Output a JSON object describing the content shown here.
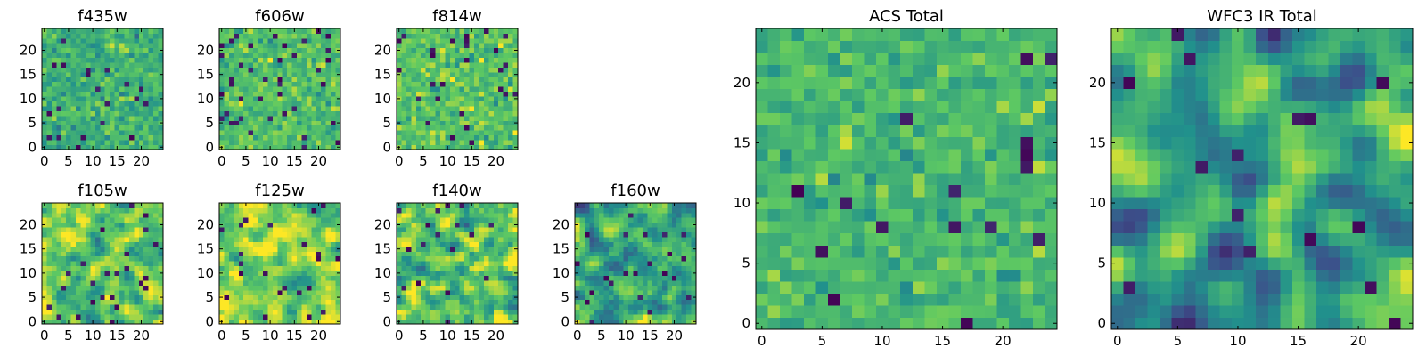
{
  "figure": {
    "colormap": "viridis",
    "colormap_stops": [
      "#440154",
      "#3b528b",
      "#21918c",
      "#5ec962",
      "#fde725"
    ]
  },
  "chart_data": [
    {
      "type": "heatmap",
      "title": "f435w",
      "grid_size": [
        25,
        25
      ],
      "xlim": [
        0,
        24
      ],
      "ylim": [
        0,
        24
      ],
      "xticks": [
        0,
        5,
        10,
        15,
        20
      ],
      "yticks": [
        0,
        5,
        10,
        15,
        20
      ],
      "seed": 11,
      "smooth": 0,
      "bias": 0.02,
      "spread": 0.55,
      "dark_fraction": 0.04
    },
    {
      "type": "heatmap",
      "title": "f606w",
      "grid_size": [
        25,
        25
      ],
      "xlim": [
        0,
        24
      ],
      "ylim": [
        0,
        24
      ],
      "xticks": [
        0,
        5,
        10,
        15,
        20
      ],
      "yticks": [
        0,
        5,
        10,
        15,
        20
      ],
      "seed": 23,
      "smooth": 0,
      "bias": 0.08,
      "spread": 0.55,
      "dark_fraction": 0.03
    },
    {
      "type": "heatmap",
      "title": "f814w",
      "grid_size": [
        25,
        25
      ],
      "xlim": [
        0,
        24
      ],
      "ylim": [
        0,
        24
      ],
      "xticks": [
        0,
        5,
        10,
        15,
        20
      ],
      "yticks": [
        0,
        5,
        10,
        15,
        20
      ],
      "seed": 37,
      "smooth": 0,
      "bias": 0.1,
      "spread": 0.6,
      "dark_fraction": 0.04
    },
    {
      "type": "heatmap",
      "title": "f105w",
      "grid_size": [
        25,
        25
      ],
      "xlim": [
        0,
        24
      ],
      "ylim": [
        0,
        24
      ],
      "xticks": [
        0,
        5,
        10,
        15,
        20
      ],
      "yticks": [
        0,
        5,
        10,
        15,
        20
      ],
      "seed": 41,
      "smooth": 1,
      "bias": 0.12,
      "spread": 0.85,
      "dark_fraction": 0.03
    },
    {
      "type": "heatmap",
      "title": "f125w",
      "grid_size": [
        25,
        25
      ],
      "xlim": [
        0,
        24
      ],
      "ylim": [
        0,
        24
      ],
      "xticks": [
        0,
        5,
        10,
        15,
        20
      ],
      "yticks": [
        0,
        5,
        10,
        15,
        20
      ],
      "seed": 53,
      "smooth": 1,
      "bias": 0.18,
      "spread": 0.85,
      "dark_fraction": 0.03
    },
    {
      "type": "heatmap",
      "title": "f140w",
      "grid_size": [
        25,
        25
      ],
      "xlim": [
        0,
        24
      ],
      "ylim": [
        0,
        24
      ],
      "xticks": [
        0,
        5,
        10,
        15,
        20
      ],
      "yticks": [
        0,
        5,
        10,
        15,
        20
      ],
      "seed": 67,
      "smooth": 1,
      "bias": 0.1,
      "spread": 0.9,
      "dark_fraction": 0.03
    },
    {
      "type": "heatmap",
      "title": "f160w",
      "grid_size": [
        25,
        25
      ],
      "xlim": [
        0,
        24
      ],
      "ylim": [
        0,
        24
      ],
      "xticks": [
        0,
        5,
        10,
        15,
        20
      ],
      "yticks": [
        0,
        5,
        10,
        15,
        20
      ],
      "seed": 79,
      "smooth": 1,
      "bias": -0.02,
      "spread": 0.85,
      "dark_fraction": 0.04
    },
    {
      "type": "heatmap",
      "title": "ACS Total",
      "grid_size": [
        25,
        25
      ],
      "xlim": [
        0,
        24
      ],
      "ylim": [
        0,
        24
      ],
      "xticks": [
        0,
        5,
        10,
        15,
        20
      ],
      "yticks": [
        0,
        5,
        10,
        15,
        20
      ],
      "seed": 97,
      "smooth": 0,
      "bias": 0.05,
      "spread": 0.5,
      "dark_fraction": 0.03
    },
    {
      "type": "heatmap",
      "title": "WFC3 IR Total",
      "grid_size": [
        25,
        25
      ],
      "xlim": [
        0,
        24
      ],
      "ylim": [
        0,
        24
      ],
      "xticks": [
        0,
        5,
        10,
        15,
        20
      ],
      "yticks": [
        0,
        5,
        10,
        15,
        20
      ],
      "seed": 113,
      "smooth": 2,
      "bias": -0.05,
      "spread": 1.0,
      "dark_fraction": 0.03
    }
  ]
}
